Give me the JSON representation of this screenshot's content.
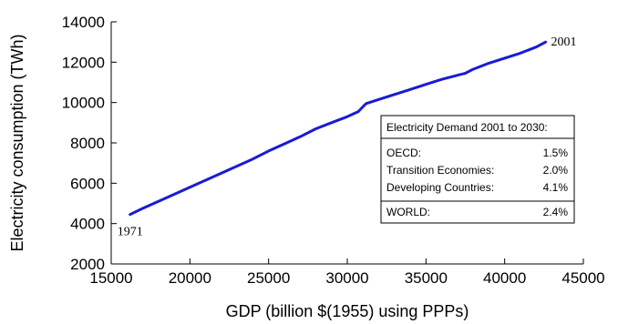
{
  "chart_data": {
    "type": "line",
    "xlabel": "GDP (billion $(1955) using PPPs)",
    "ylabel": "Electricity consumption (TWh)",
    "xlim": [
      15000,
      45000
    ],
    "ylim": [
      2000,
      14000
    ],
    "xticks": [
      15000,
      20000,
      25000,
      30000,
      35000,
      40000,
      45000
    ],
    "yticks": [
      2000,
      4000,
      6000,
      8000,
      10000,
      12000,
      14000
    ],
    "grid": false,
    "series": [
      {
        "color": "#1a1ad6",
        "x": [
          16200,
          17000,
          18000,
          19000,
          20000,
          21000,
          22000,
          23000,
          24000,
          25000,
          26000,
          27000,
          28000,
          29000,
          30000,
          30700,
          31000,
          31200,
          32000,
          33000,
          34000,
          35000,
          36000,
          37000,
          37500,
          38000,
          39000,
          40000,
          41000,
          42000,
          42600
        ],
        "y": [
          4450,
          4750,
          5100,
          5450,
          5800,
          6150,
          6500,
          6850,
          7200,
          7600,
          7950,
          8300,
          8700,
          9000,
          9300,
          9550,
          9800,
          9950,
          10150,
          10400,
          10650,
          10900,
          11150,
          11350,
          11450,
          11650,
          11950,
          12200,
          12450,
          12750,
          13000
        ]
      }
    ],
    "annotations": [
      {
        "text": "1971",
        "x": 16200,
        "y": 4450
      },
      {
        "text": "2001",
        "x": 42600,
        "y": 13000
      }
    ],
    "inset_box": {
      "title": "Electricity Demand 2001 to 2030:",
      "rows": [
        {
          "label": "OECD:",
          "value": "1.5%"
        },
        {
          "label": "Transition Economies:",
          "value": "2.0%"
        },
        {
          "label": "Developing Countries:",
          "value": "4.1%"
        },
        {
          "label": "WORLD:",
          "value": "2.4%"
        }
      ]
    }
  }
}
